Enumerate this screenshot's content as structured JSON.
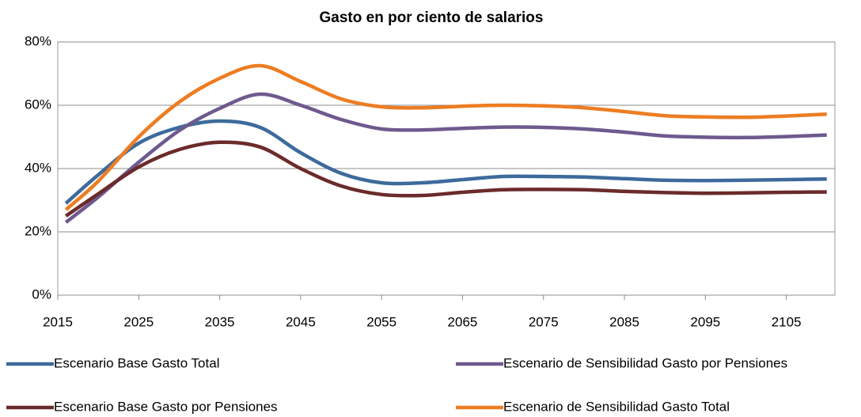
{
  "chart_data": {
    "type": "line",
    "title": "Gasto en por ciento de salarios",
    "x": [
      2016,
      2020,
      2025,
      2030,
      2035,
      2040,
      2045,
      2050,
      2055,
      2060,
      2065,
      2070,
      2075,
      2080,
      2085,
      2090,
      2095,
      2100,
      2105,
      2110
    ],
    "series": [
      {
        "name": "Escenario Base Gasto Total",
        "color": "#3d6a9c",
        "values": [
          29,
          38,
          48,
          53,
          55,
          53,
          45,
          38.5,
          35.5,
          35.5,
          36.5,
          37.5,
          37.5,
          37.3,
          36.8,
          36.3,
          36.2,
          36.3,
          36.5,
          36.7
        ]
      },
      {
        "name": "Escenario de Sensibilidad Gasto por Pensiones",
        "color": "#6e5a8e",
        "values": [
          23,
          31,
          42,
          52,
          59,
          63.5,
          60,
          55.5,
          52.5,
          52.2,
          52.7,
          53.1,
          53,
          52.5,
          51.5,
          50.3,
          49.9,
          49.8,
          50.1,
          50.6
        ]
      },
      {
        "name": "Escenario Base Gasto por Pensiones",
        "color": "#6b2b2b",
        "values": [
          25,
          32,
          40.5,
          46,
          48.3,
          46.8,
          40,
          34.5,
          31.8,
          31.5,
          32.5,
          33.3,
          33.4,
          33.3,
          32.8,
          32.4,
          32.2,
          32.3,
          32.5,
          32.6
        ]
      },
      {
        "name": "Escenario de Sensibilidad Gasto Total",
        "color": "#ed7d22",
        "values": [
          27,
          36,
          50,
          61,
          68.5,
          72.5,
          67.5,
          62,
          59.5,
          59.2,
          59.7,
          60,
          59.8,
          59.2,
          58,
          56.7,
          56.3,
          56.2,
          56.6,
          57.2
        ]
      }
    ],
    "xlim": [
      2015,
      2111
    ],
    "xticks": [
      2015,
      2025,
      2035,
      2045,
      2055,
      2065,
      2075,
      2085,
      2095,
      2105
    ],
    "ylim": [
      0,
      80
    ],
    "yticks": [
      {
        "value": 0,
        "label": "0%"
      },
      {
        "value": 20,
        "label": "20%"
      },
      {
        "value": 40,
        "label": "40%"
      },
      {
        "value": 60,
        "label": "60%"
      },
      {
        "value": 80,
        "label": "80%"
      }
    ],
    "grid": true
  }
}
